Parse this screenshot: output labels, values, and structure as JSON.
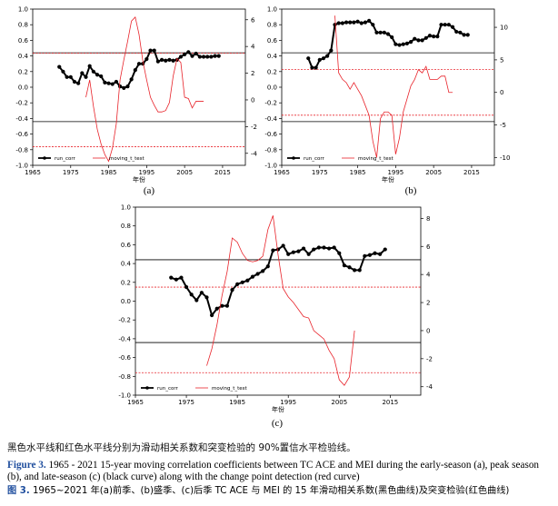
{
  "chart_data": [
    {
      "type": "line",
      "panel_label": "(a)",
      "xlabel": "年份",
      "xlim": [
        1965,
        2021
      ],
      "xticks": [
        1965,
        1975,
        1985,
        1995,
        2005,
        2015
      ],
      "ylim": [
        -1.0,
        1.0
      ],
      "yticks": [
        "1.0",
        "0.8",
        "0.6",
        "0.4",
        "0.2",
        "0.0",
        "-0.2",
        "-0.4",
        "-0.6",
        "-0.8",
        "-1.0"
      ],
      "y2lim": [
        -4.9,
        6.8
      ],
      "y2ticks": [
        "6",
        "4",
        "2",
        "0",
        "-2",
        "-4"
      ],
      "hlines": {
        "corr_pos": 0.44,
        "corr_neg": -0.44,
        "t_pos": 3.5,
        "t_neg": -3.5
      },
      "legend": [
        "run_corr",
        "moving_t_test"
      ],
      "series": [
        {
          "name": "run_corr",
          "axis": "left",
          "x": [
            1972,
            1973,
            1974,
            1975,
            1976,
            1977,
            1978,
            1979,
            1980,
            1981,
            1982,
            1983,
            1984,
            1985,
            1986,
            1987,
            1988,
            1989,
            1990,
            1991,
            1992,
            1993,
            1994,
            1995,
            1996,
            1997,
            1998,
            1999,
            2000,
            2001,
            2002,
            2003,
            2004,
            2005,
            2006,
            2007,
            2008,
            2009,
            2010,
            2011,
            2012,
            2013,
            2014
          ],
          "y": [
            0.26,
            0.2,
            0.13,
            0.13,
            0.07,
            0.05,
            0.18,
            0.13,
            0.27,
            0.2,
            0.16,
            0.14,
            0.06,
            0.05,
            0.04,
            0.07,
            0.01,
            -0.01,
            0.01,
            0.1,
            0.22,
            0.3,
            0.3,
            0.36,
            0.47,
            0.47,
            0.33,
            0.35,
            0.34,
            0.35,
            0.34,
            0.35,
            0.39,
            0.42,
            0.45,
            0.4,
            0.43,
            0.39,
            0.39,
            0.39,
            0.39,
            0.4,
            0.4
          ]
        },
        {
          "name": "moving_t_test",
          "axis": "right",
          "x": [
            1979,
            1980,
            1981,
            1982,
            1983,
            1984,
            1985,
            1986,
            1987,
            1988,
            1989,
            1990,
            1991,
            1992,
            1993,
            1994,
            1995,
            1996,
            1997,
            1998,
            1999,
            2000,
            2001,
            2002,
            2003,
            2004,
            2005,
            2006,
            2007,
            2008,
            2009,
            2010
          ],
          "y": [
            0.2,
            1.5,
            -0.5,
            -2.2,
            -3.3,
            -4.1,
            -4.6,
            -3.6,
            -1.8,
            1.5,
            3.0,
            4.4,
            5.9,
            6.2,
            4.9,
            2.9,
            1.5,
            0.2,
            -0.4,
            -0.9,
            -0.9,
            -0.8,
            -0.2,
            1.8,
            3.1,
            2.8,
            0.2,
            0.1,
            -0.6,
            -0.1,
            -0.1,
            -0.1
          ]
        }
      ]
    },
    {
      "type": "line",
      "panel_label": "(b)",
      "xlabel": "年份",
      "xlim": [
        1965,
        2021
      ],
      "xticks": [
        1965,
        1975,
        1985,
        1995,
        2005,
        2015
      ],
      "ylim": [
        -1.0,
        1.0
      ],
      "yticks": [
        "1.0",
        "0.8",
        "0.6",
        "0.4",
        "0.2",
        "0.0",
        "-0.2",
        "-0.4",
        "-0.6",
        "-0.8",
        "-1.0"
      ],
      "y2lim": [
        -11.2,
        12.8
      ],
      "y2ticks": [
        "10",
        "5",
        "0",
        "-5",
        "-10"
      ],
      "hlines": {
        "corr_pos": 0.44,
        "corr_neg": -0.44,
        "t_pos": 3.5,
        "t_neg": -3.5
      },
      "legend": [
        "run_corr",
        "moving_t_test"
      ],
      "series": [
        {
          "name": "run_corr",
          "axis": "left",
          "x": [
            1972,
            1973,
            1974,
            1975,
            1976,
            1977,
            1978,
            1979,
            1980,
            1981,
            1982,
            1983,
            1984,
            1985,
            1986,
            1987,
            1988,
            1989,
            1990,
            1991,
            1992,
            1993,
            1994,
            1995,
            1996,
            1997,
            1998,
            1999,
            2000,
            2001,
            2002,
            2003,
            2004,
            2005,
            2006,
            2007,
            2008,
            2009,
            2010,
            2011,
            2012,
            2013,
            2014
          ],
          "y": [
            0.37,
            0.25,
            0.25,
            0.35,
            0.37,
            0.4,
            0.47,
            0.8,
            0.82,
            0.82,
            0.83,
            0.83,
            0.83,
            0.84,
            0.82,
            0.83,
            0.85,
            0.8,
            0.7,
            0.7,
            0.7,
            0.68,
            0.64,
            0.55,
            0.54,
            0.55,
            0.56,
            0.58,
            0.62,
            0.6,
            0.6,
            0.63,
            0.66,
            0.65,
            0.65,
            0.8,
            0.8,
            0.8,
            0.77,
            0.71,
            0.7,
            0.67,
            0.67
          ]
        },
        {
          "name": "moving_t_test",
          "axis": "right",
          "x": [
            1979,
            1980,
            1981,
            1982,
            1983,
            1984,
            1985,
            1986,
            1987,
            1988,
            1989,
            1990,
            1991,
            1992,
            1993,
            1994,
            1995,
            1996,
            1997,
            1998,
            1999,
            2000,
            2001,
            2002,
            2003,
            2004,
            2005,
            2006,
            2007,
            2008,
            2009,
            2010
          ],
          "y": [
            11.8,
            3.0,
            2.0,
            1.5,
            0.5,
            1.5,
            0.5,
            -0.5,
            -2.0,
            -3.5,
            -7.5,
            -10.0,
            -4.0,
            -3.0,
            -3.0,
            -3.5,
            -9.5,
            -7.0,
            -3.0,
            -1.0,
            1.0,
            2.0,
            3.5,
            3.0,
            4.0,
            2.0,
            2.0,
            2.0,
            2.5,
            2.5,
            0.0,
            0.0
          ]
        }
      ]
    },
    {
      "type": "line",
      "panel_label": "(c)",
      "xlabel": "年份",
      "xlim": [
        1965,
        2021
      ],
      "xticks": [
        1965,
        1975,
        1985,
        1995,
        2005,
        2015
      ],
      "ylim": [
        -1.0,
        1.0
      ],
      "yticks": [
        "1.0",
        "0.8",
        "0.6",
        "0.4",
        "0.2",
        "0.0",
        "-0.2",
        "-0.4",
        "-0.6",
        "-0.8",
        "-1.0"
      ],
      "y2lim": [
        -4.6,
        8.8
      ],
      "y2ticks": [
        "8",
        "6",
        "4",
        "2",
        "0",
        "-2",
        "-4"
      ],
      "hlines": {
        "corr_pos": 0.44,
        "corr_neg": -0.44,
        "t_pos": 3.1,
        "t_neg": -3.0
      },
      "legend": [
        "run_corr",
        "moving_t_test"
      ],
      "series": [
        {
          "name": "run_corr",
          "axis": "left",
          "x": [
            1972,
            1973,
            1974,
            1975,
            1976,
            1977,
            1978,
            1979,
            1980,
            1981,
            1982,
            1983,
            1984,
            1985,
            1986,
            1987,
            1988,
            1989,
            1990,
            1991,
            1992,
            1993,
            1994,
            1995,
            1996,
            1997,
            1998,
            1999,
            2000,
            2001,
            2002,
            2003,
            2004,
            2005,
            2006,
            2007,
            2008,
            2009,
            2010,
            2011,
            2012,
            2013,
            2014
          ],
          "y": [
            0.25,
            0.23,
            0.25,
            0.15,
            0.07,
            0.01,
            0.09,
            0.04,
            -0.15,
            -0.08,
            -0.05,
            -0.05,
            0.12,
            0.18,
            0.2,
            0.22,
            0.26,
            0.29,
            0.32,
            0.37,
            0.54,
            0.55,
            0.59,
            0.5,
            0.52,
            0.53,
            0.56,
            0.5,
            0.55,
            0.57,
            0.57,
            0.56,
            0.57,
            0.51,
            0.38,
            0.36,
            0.33,
            0.33,
            0.48,
            0.49,
            0.51,
            0.5,
            0.55
          ]
        },
        {
          "name": "moving_t_test",
          "axis": "right",
          "x": [
            1979,
            1980,
            1981,
            1982,
            1983,
            1984,
            1985,
            1986,
            1987,
            1988,
            1989,
            1990,
            1991,
            1992,
            1993,
            1994,
            1995,
            1996,
            1997,
            1998,
            1999,
            2000,
            2001,
            2002,
            2003,
            2004,
            2005,
            2006,
            2007,
            2008
          ],
          "y": [
            -2.5,
            -1.3,
            0.4,
            2.5,
            4.2,
            6.6,
            6.3,
            5.5,
            5.0,
            4.9,
            5.0,
            5.3,
            7.2,
            8.2,
            5.4,
            3.0,
            2.4,
            2.0,
            1.5,
            1.0,
            0.9,
            0.0,
            -0.3,
            -0.6,
            -1.4,
            -2.0,
            -3.5,
            -3.9,
            -3.3,
            0.0
          ]
        }
      ]
    }
  ],
  "note": "黑色水平线和红色水平线分别为滑动相关系数和突变检验的 90%置信水平检验线。",
  "caption_en": {
    "label": "Figure 3.",
    "text": " 1965 - 2021 15-year moving correlation coefficients between TC ACE and MEI during the early-season (a), peak season (b), and late-season (c) (black curve) along with the change point detection (red curve)"
  },
  "caption_zh": {
    "label": "图 3.",
    "text": " 1965~2021 年(a)前季、(b)盛季、(c)后季 TC ACE 与 MEI 的 15 年滑动相关系数(黑色曲线)及突变检验(红色曲线)"
  },
  "colors": {
    "corr": "#000000",
    "ttest": "#e8232a",
    "axis": "#000000"
  }
}
